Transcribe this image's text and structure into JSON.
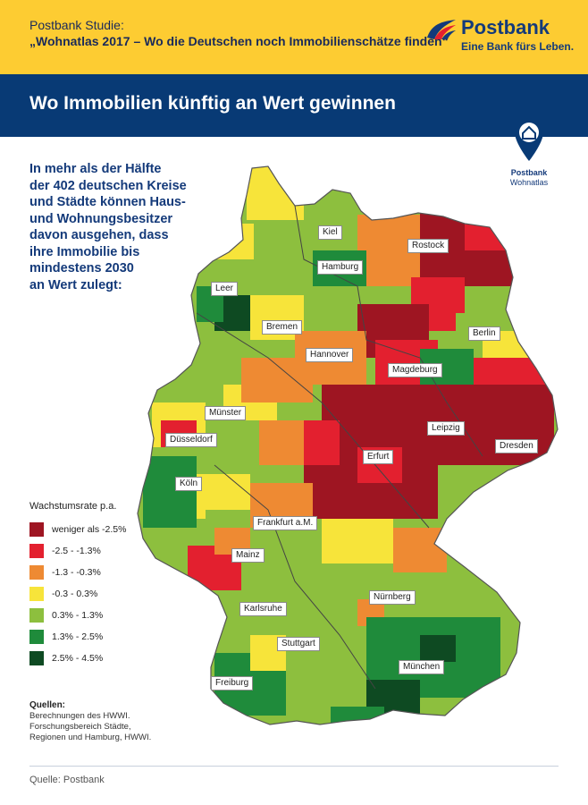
{
  "header": {
    "study_line1": "Postbank Studie:",
    "study_line2": "„Wohnatlas 2017 – Wo die Deutschen noch Immobilienschätze finden“",
    "brand_name": "Postbank",
    "brand_tagline": "Eine Bank fürs Leben."
  },
  "title": "Wo Immobilien künftig an Wert gewinnen",
  "wohnatlas_badge": {
    "brand": "Postbank",
    "sub": "Wohnatlas",
    "icon": "house-pin-icon"
  },
  "intro_lines": [
    "In mehr als der Hälfte",
    "der 402 deutschen Kreise",
    "und Städte können Haus-",
    "und Wohnungsbesitzer",
    "davon ausgehen, dass",
    "ihre Immobilie bis",
    "mindestens 2030",
    "an Wert zulegt:"
  ],
  "legend": {
    "title": "Wachstumsrate p.a.",
    "items": [
      {
        "label": "weniger als -2.5%",
        "color": "#9e1522"
      },
      {
        "label": "-2.5 - -1.3%",
        "color": "#e3202f"
      },
      {
        "label": "-1.3 - -0.3%",
        "color": "#ee8a33"
      },
      {
        "label": "-0.3 - 0.3%",
        "color": "#f7e43a"
      },
      {
        "label": "0.3% - 1.3%",
        "color": "#8dbf3e"
      },
      {
        "label": "1.3% - 2.5%",
        "color": "#1f8b3b"
      },
      {
        "label": "2.5% - 4.5%",
        "color": "#0e4a22"
      }
    ]
  },
  "cities": [
    {
      "name": "Kiel"
    },
    {
      "name": "Rostock"
    },
    {
      "name": "Hamburg"
    },
    {
      "name": "Leer"
    },
    {
      "name": "Bremen"
    },
    {
      "name": "Berlin"
    },
    {
      "name": "Hannover"
    },
    {
      "name": "Magdeburg"
    },
    {
      "name": "Münster"
    },
    {
      "name": "Leipzig"
    },
    {
      "name": "Düsseldorf"
    },
    {
      "name": "Dresden"
    },
    {
      "name": "Erfurt"
    },
    {
      "name": "Köln"
    },
    {
      "name": "Frankfurt a.M."
    },
    {
      "name": "Mainz"
    },
    {
      "name": "Nürnberg"
    },
    {
      "name": "Karlsruhe"
    },
    {
      "name": "Stuttgart"
    },
    {
      "name": "München"
    },
    {
      "name": "Freiburg"
    }
  ],
  "sources": {
    "title": "Quellen:",
    "lines": [
      "Berechnungen des HWWI.",
      "Forschungsbereich Städte,",
      "Regionen und Hamburg, HWWI."
    ]
  },
  "footer": "Quelle: Postbank"
}
